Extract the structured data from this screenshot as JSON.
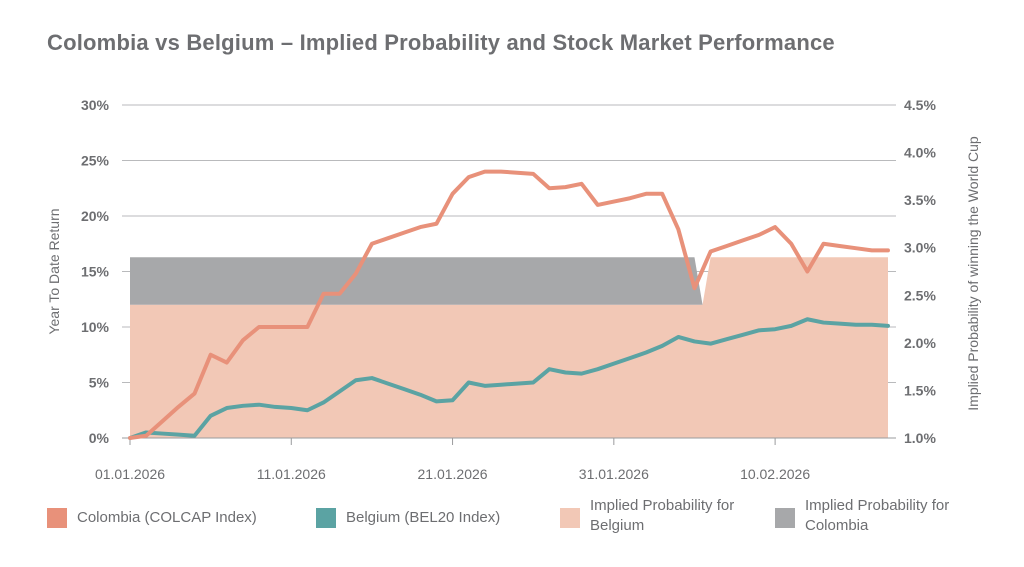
{
  "title": "Colombia vs Belgium – Implied Probability and Stock Market Performance",
  "chart_data": {
    "type": "line",
    "title": "Colombia vs Belgium – Implied Probability and Stock Market Performance",
    "ylabel": "Year To Date Return",
    "y2label": "Implied Probability of winning the World Cup",
    "xlabel": "",
    "x_ticks": [
      "01.01.2026",
      "11.01.2026",
      "21.01.2026",
      "31.01.2026",
      "10.02.2026"
    ],
    "y_ticks": [
      "0%",
      "5%",
      "10%",
      "15%",
      "20%",
      "25%",
      "30%"
    ],
    "y2_ticks": [
      "1.0%",
      "1.5%",
      "2.0%",
      "2.5%",
      "3.0%",
      "3.5%",
      "4.0%",
      "4.5%"
    ],
    "ylim": [
      0,
      30
    ],
    "y2lim": [
      1.0,
      4.5
    ],
    "grid": true,
    "legend_position": "bottom",
    "colors": {
      "colombia": "#e8917a",
      "belgium": "#5ba3a3",
      "prob_belgium": "#f2c8b6",
      "prob_colombia": "#a7a8aa"
    },
    "series": [
      {
        "name": "Colombia (COLCAP Index)",
        "type": "line",
        "axis": "left",
        "x": [
          0,
          1,
          2,
          3,
          4,
          5,
          6,
          7,
          8,
          9,
          10,
          11,
          12,
          13,
          14,
          15,
          16,
          17,
          18,
          19,
          20,
          21,
          22,
          23,
          24,
          25,
          26,
          27,
          28,
          29,
          30,
          31,
          32,
          33,
          34,
          35,
          36,
          37,
          38,
          39,
          40,
          41,
          42,
          43,
          44,
          45,
          46,
          47
        ],
        "values": [
          0.0,
          0.2,
          1.5,
          2.8,
          4.0,
          7.5,
          6.8,
          8.8,
          10.0,
          10.0,
          10.0,
          10.0,
          13.0,
          13.0,
          14.8,
          17.5,
          18.0,
          18.5,
          19.0,
          19.3,
          22.0,
          23.5,
          24.0,
          24.0,
          23.9,
          23.8,
          22.5,
          22.6,
          22.9,
          21.0,
          21.3,
          21.6,
          22.0,
          22.0,
          18.8,
          13.5,
          16.8,
          17.3,
          17.8,
          18.3,
          19.0,
          17.5,
          15.0,
          17.5,
          17.3,
          17.1,
          16.9,
          16.9
        ],
        "x_labels_note": ""
      },
      {
        "name": "Belgium (BEL20 Index)",
        "type": "line",
        "axis": "left",
        "x": [
          0,
          1,
          2,
          3,
          4,
          5,
          6,
          7,
          8,
          9,
          10,
          11,
          12,
          13,
          14,
          15,
          16,
          17,
          18,
          19,
          20,
          21,
          22,
          23,
          24,
          25,
          26,
          27,
          28,
          29,
          30,
          31,
          32,
          33,
          34,
          35,
          36,
          37,
          38,
          39,
          40,
          41,
          42,
          43,
          44,
          45,
          46,
          47
        ],
        "values": [
          0.0,
          0.5,
          0.4,
          0.3,
          0.2,
          2.0,
          2.7,
          2.9,
          3.0,
          2.8,
          2.7,
          2.5,
          3.2,
          4.2,
          5.2,
          5.4,
          4.9,
          4.4,
          3.9,
          3.3,
          3.4,
          5.0,
          4.7,
          4.8,
          4.9,
          5.0,
          6.2,
          5.9,
          5.8,
          6.2,
          6.7,
          7.2,
          7.7,
          8.3,
          9.1,
          8.7,
          8.5,
          8.9,
          9.3,
          9.7,
          9.8,
          10.1,
          10.7,
          10.4,
          10.3,
          10.2,
          10.2,
          10.1
        ]
      },
      {
        "name": "Implied Probability for Belgium",
        "type": "area",
        "axis": "right",
        "x": [
          0,
          35.5,
          36,
          47
        ],
        "values": [
          2.4,
          2.4,
          2.9,
          2.9
        ]
      },
      {
        "name": "Implied Probability for Colombia",
        "type": "area-band",
        "axis": "right",
        "x": [
          0,
          35,
          35.5
        ],
        "values": [
          2.9,
          2.9,
          2.4
        ],
        "base": [
          2.4,
          2.4,
          2.4
        ]
      }
    ]
  },
  "legend": [
    {
      "label": "Colombia (COLCAP Index)",
      "color": "#e8917a"
    },
    {
      "label": "Belgium (BEL20 Index)",
      "color": "#5ba3a3"
    },
    {
      "label": "Implied Probability for Belgium",
      "color": "#f2c8b6"
    },
    {
      "label": "Implied Probability for Colombia",
      "color": "#a7a8aa"
    }
  ]
}
